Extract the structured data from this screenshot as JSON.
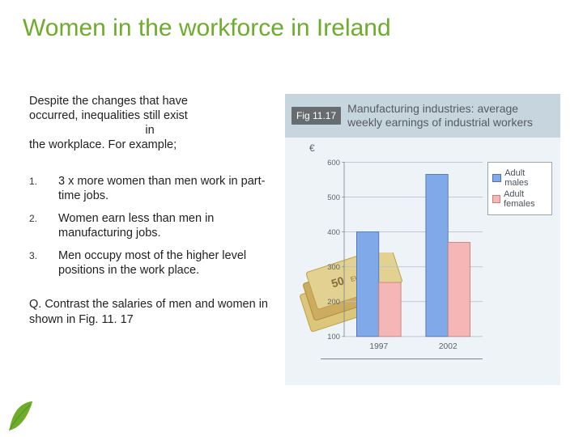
{
  "title": "Women in the workforce in Ireland",
  "intro": {
    "l1": "Despite the changes that have",
    "l2": "occurred, inequalities still exist",
    "l3": "in",
    "l4": "the workplace. For example;"
  },
  "list": [
    {
      "num": "1.",
      "txt": "3 x more women than men work in part-time jobs."
    },
    {
      "num": "2.",
      "txt": "Women earn less than men in manufacturing jobs."
    },
    {
      "num": "3.",
      "txt": "Men occupy most of the higher level positions in the work place."
    }
  ],
  "question": "Q. Contrast the salaries of men and women in shown in Fig. 11. 17",
  "figure": {
    "tag": "Fig 11.17",
    "title": "Manufacturing industries: average weekly earnings of industrial workers",
    "y_unit": "€",
    "background_color": "#eef3f7",
    "header_bg": "#c7d6de",
    "header_text_color": "#535b60",
    "tag_bg": "#656d71",
    "grid_color": "#b8c4cb",
    "axis_color": "#7a8a92",
    "tick_fontsize": 11,
    "label_fontsize": 12,
    "legend": {
      "bg": "#ffffff",
      "border": "#9aa7ae",
      "items": [
        {
          "label": "Adult males",
          "color": "#7fa9e8",
          "border": "#4e73b0"
        },
        {
          "label": "Adult females",
          "color": "#f4b7b5",
          "border": "#c97f7d"
        }
      ]
    },
    "chart": {
      "type": "grouped-bar",
      "ylim": [
        100,
        600
      ],
      "yticks": [
        100,
        200,
        300,
        400,
        500,
        600
      ],
      "bar_group_gap": 0.9,
      "bar_width": 0.32,
      "categories": [
        "1997",
        "2002"
      ],
      "series": [
        {
          "name": "Adult males",
          "color": "#7fa9e8",
          "border": "#4e73b0",
          "values": [
            400,
            565
          ]
        },
        {
          "name": "Adult females",
          "color": "#f4b7b5",
          "border": "#c97f7d",
          "values": [
            255,
            370
          ]
        }
      ]
    },
    "money_decoration": {
      "note_colors": [
        "#d9c06a",
        "#c8a34a",
        "#b88e3a"
      ],
      "note_label": "50 EURO",
      "note_label_color": "#7a5a20"
    }
  },
  "decoration": {
    "leaf_color": "#6eac2c"
  }
}
